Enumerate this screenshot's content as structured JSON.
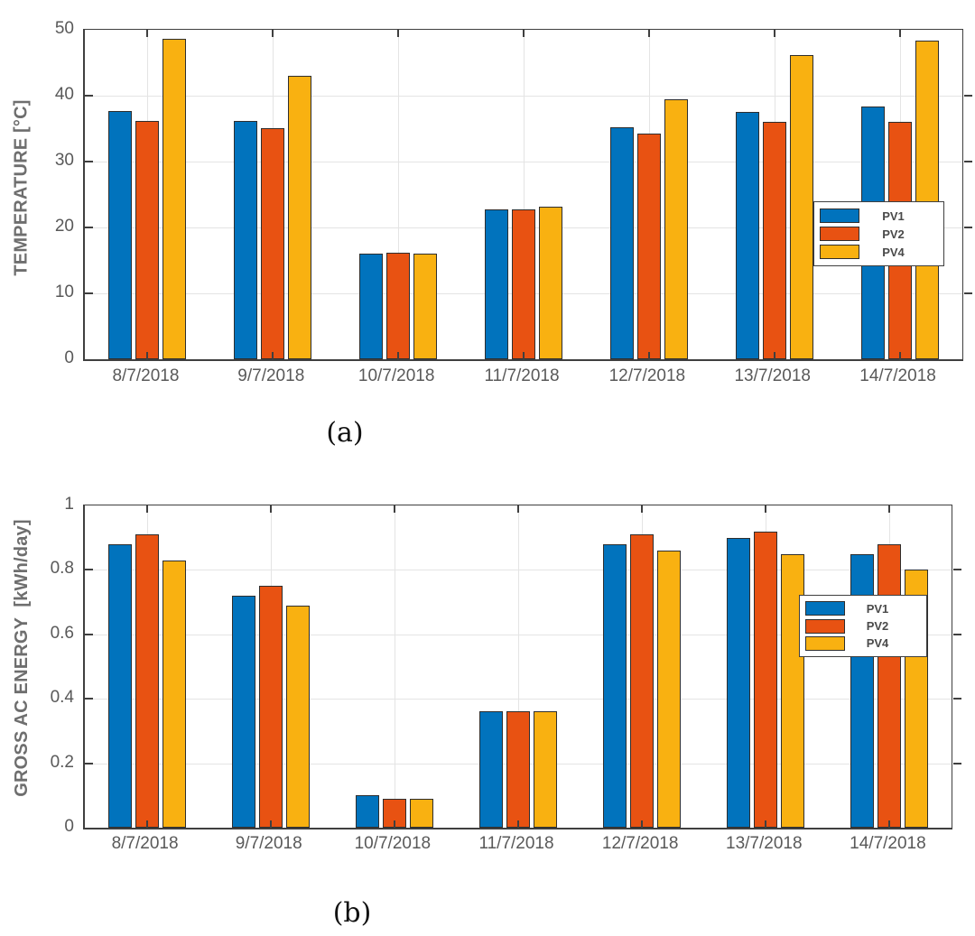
{
  "figure": {
    "background": "#ffffff",
    "panel_captions": [
      "(a)",
      "(b)"
    ]
  },
  "colors": {
    "pv1_blue": "#0173BD",
    "pv2_orange": "#E85212",
    "pv4_yellow": "#F9B111",
    "bar_edge": "#2e2e2e",
    "gridline": "#e4e4e4",
    "axis_spine": "#3f3f3f",
    "tick_label": "#595959",
    "axis_title": "#6e6e6e",
    "legend_text": "#4a4a4a",
    "caption_text": "#111111"
  },
  "chart_data": [
    {
      "type": "bar",
      "panel": "a",
      "caption": "(a)",
      "title": "",
      "xlabel": "",
      "ylabel": "TEMPERATURE [°C]",
      "categories": [
        "8/7/2018",
        "9/7/2018",
        "10/7/2018",
        "11/7/2018",
        "12/7/2018",
        "13/7/2018",
        "14/7/2018"
      ],
      "series": [
        {
          "name": "PV1",
          "color": "#0173BD",
          "values": [
            37.7,
            36.1,
            16.0,
            22.8,
            35.2,
            37.5,
            38.3
          ]
        },
        {
          "name": "PV2",
          "color": "#E85212",
          "values": [
            36.1,
            35.1,
            16.2,
            22.8,
            34.3,
            36.0,
            36.0
          ]
        },
        {
          "name": "PV4",
          "color": "#F9B111",
          "values": [
            48.6,
            43.0,
            16.0,
            23.1,
            39.5,
            46.1,
            48.3
          ]
        }
      ],
      "ylim": [
        0,
        50
      ],
      "yticks": [
        0,
        10,
        20,
        30,
        40,
        50
      ],
      "ytick_labels": [
        "0",
        "10",
        "20",
        "30",
        "40",
        "50"
      ],
      "grid": true,
      "legend": {
        "entries": [
          "PV1",
          "PV2",
          "PV4"
        ],
        "position": "inside-right-middle"
      }
    },
    {
      "type": "bar",
      "panel": "b",
      "caption": "(b)",
      "title": "",
      "xlabel": "",
      "ylabel": "GROSS AC ENERGY  [kWh/day]",
      "categories": [
        "8/7/2018",
        "9/7/2018",
        "10/7/2018",
        "11/7/2018",
        "12/7/2018",
        "13/7/2018",
        "14/7/2018"
      ],
      "series": [
        {
          "name": "PV1",
          "color": "#0173BD",
          "values": [
            0.88,
            0.72,
            0.1,
            0.36,
            0.88,
            0.9,
            0.85
          ]
        },
        {
          "name": "PV2",
          "color": "#E85212",
          "values": [
            0.91,
            0.75,
            0.09,
            0.36,
            0.91,
            0.92,
            0.88
          ]
        },
        {
          "name": "PV4",
          "color": "#F9B111",
          "values": [
            0.83,
            0.69,
            0.09,
            0.36,
            0.86,
            0.85,
            0.8
          ]
        }
      ],
      "ylim": [
        0,
        1
      ],
      "yticks": [
        0,
        0.2,
        0.4,
        0.6,
        0.8,
        1
      ],
      "ytick_labels": [
        "0",
        "0.2",
        "0.4",
        "0.6",
        "0.8",
        "1"
      ],
      "grid": true,
      "legend": {
        "entries": [
          "PV1",
          "PV2",
          "PV4"
        ],
        "position": "inside-right-middle"
      }
    }
  ]
}
